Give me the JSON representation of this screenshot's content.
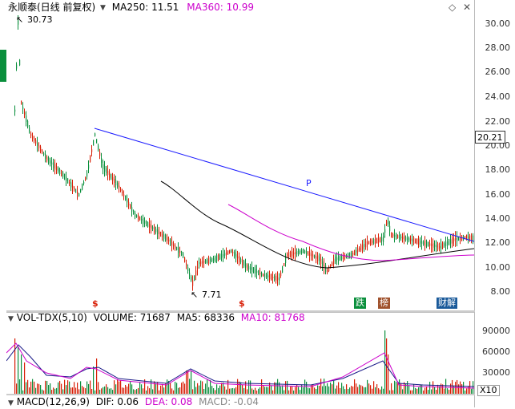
{
  "price_panel": {
    "title": "永顺泰(日线 前复权)",
    "ma250_label": "MA250: 11.51",
    "ma360_label": "MA360: 10.99",
    "high_label": "30.73",
    "low_label": "7.71",
    "trendline_label": "P",
    "current_price": "20.21",
    "y_ticks": [
      "30.00",
      "28.00",
      "26.00",
      "24.00",
      "22.00",
      "20.00",
      "18.00",
      "16.00",
      "14.00",
      "12.00",
      "10.00",
      "8.00"
    ],
    "markers": [
      "$",
      "$"
    ],
    "badges": [
      "跌",
      "榜",
      "财解"
    ]
  },
  "volume_panel": {
    "indicator": "VOL-TDX(5,10)",
    "volume_label": "VOLUME: 71687",
    "ma5_label": "MA5: 68336",
    "ma10_label": "MA10: 81768",
    "y_ticks": [
      "90000",
      "60000",
      "30000"
    ],
    "unit": "X10"
  },
  "macd_panel": {
    "indicator": "MACD(12,26,9)",
    "dif_label": "DIF: 0.06",
    "dea_label": "DEA: 0.08",
    "macd_label": "MACD: -0.04"
  },
  "colors": {
    "up": "#d81e06",
    "down": "#0a8f3c",
    "ma250": "#000000",
    "ma360": "#cc00cc",
    "trend": "#1a1aff",
    "mavol5": "#cc00cc",
    "mavol10": "#1a1a88"
  }
}
